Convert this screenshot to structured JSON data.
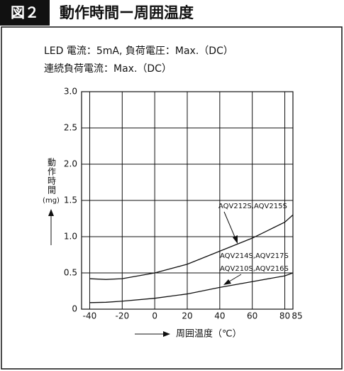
{
  "figure_label": "図２",
  "chart_data": {
    "type": "line",
    "title": "動作時間ー周囲温度",
    "conditions": [
      "LED 電流：5mA, 負荷電圧：Max.（DC）",
      "連続負荷電流：Max.（DC）"
    ],
    "y_label": "動作時間",
    "y_unit": "(mg)",
    "x_label": "周囲温度（℃）",
    "x": [
      -40,
      -30,
      -20,
      0,
      20,
      40,
      60,
      80,
      85
    ],
    "series": [
      {
        "color": "#111",
        "values": [
          0.42,
          0.41,
          0.42,
          0.5,
          0.62,
          0.8,
          0.98,
          1.2,
          1.3
        ]
      },
      {
        "color": "#111",
        "values": [
          0.09,
          0.095,
          0.11,
          0.15,
          0.21,
          0.3,
          0.38,
          0.46,
          0.5
        ]
      }
    ],
    "annotations": [
      "AQV212S,AQV215S",
      "AQV214S,AQV217S",
      "AQV210S,AQV216S"
    ],
    "xlim": [
      -45,
      85
    ],
    "xticks": [
      -40,
      -20,
      0,
      20,
      40,
      60,
      80,
      85
    ],
    "ylim": [
      0,
      3
    ],
    "yticks": [
      0,
      {
        "value": 0.5,
        "label": "0.5"
      },
      {
        "value": 1,
        "label": "1.0"
      },
      {
        "value": 1.5,
        "label": "1.5"
      },
      {
        "value": 2,
        "label": "2.0"
      },
      {
        "value": 2.5,
        "label": "2.5"
      },
      {
        "value": 3,
        "label": "3.0"
      }
    ],
    "grid": true
  }
}
